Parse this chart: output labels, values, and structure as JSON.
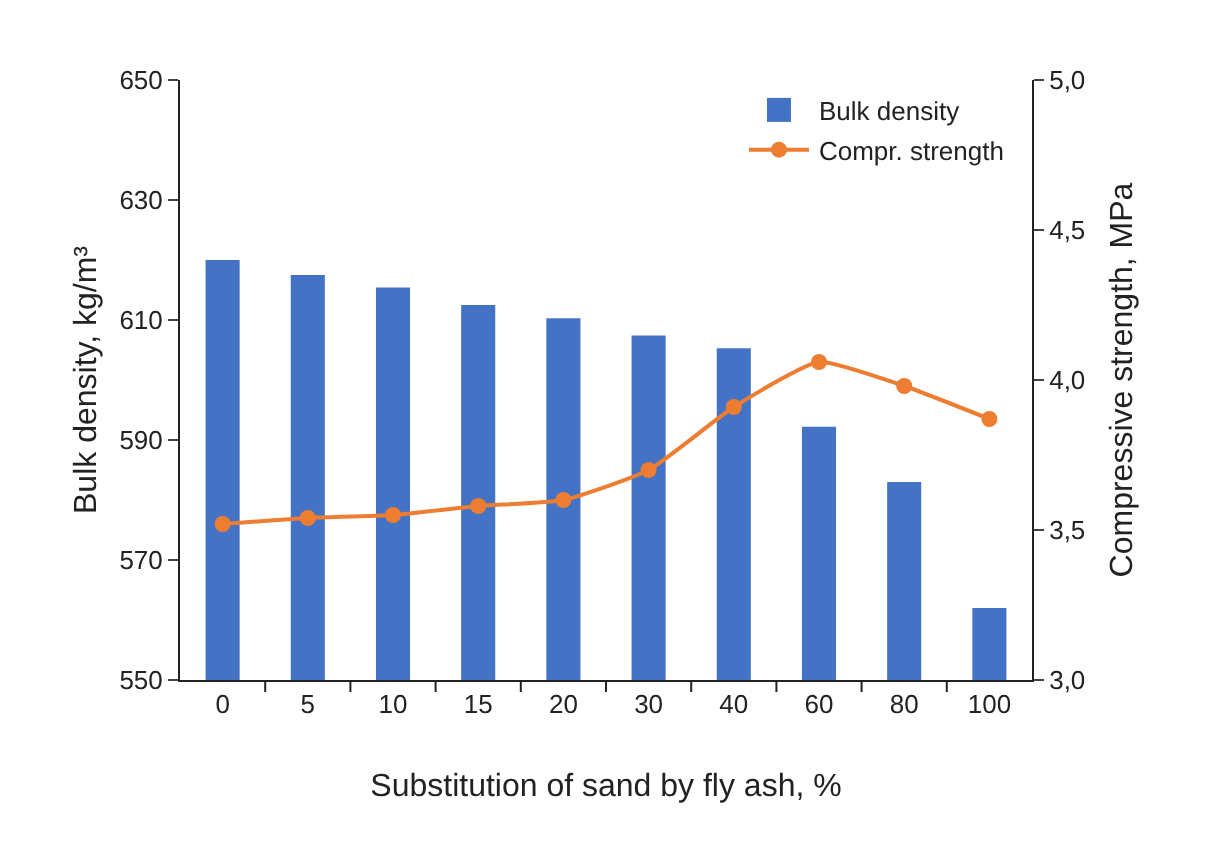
{
  "chart_data": {
    "type": "bar",
    "xlabel": "Substitution of sand by fly ash, %",
    "ylabel": "Bulk density, kg/m³",
    "y2label": "Compressive strength, MPa",
    "categories": [
      "0",
      "5",
      "10",
      "15",
      "20",
      "30",
      "40",
      "60",
      "80",
      "100"
    ],
    "series": [
      {
        "name": "Bulk density",
        "color": "#4472c4",
        "values": [
          620,
          617.5,
          615.4,
          612.5,
          610.3,
          607.4,
          605.3,
          592.2,
          583,
          562
        ]
      },
      {
        "name": "Compr. strength",
        "type": "line",
        "axis": "y2",
        "color": "#ed7d31",
        "marker": "circle",
        "values": [
          3.52,
          3.54,
          3.55,
          3.58,
          3.6,
          3.7,
          3.91,
          4.06,
          3.98,
          3.87
        ]
      }
    ],
    "ylim": [
      550,
      650
    ],
    "yticks": [
      550,
      570,
      590,
      610,
      630,
      650
    ],
    "y2lim": [
      3,
      5
    ],
    "y2ticks": [
      {
        "value": 3,
        "label": "3,0"
      },
      {
        "value": 3.5,
        "label": "3,5"
      },
      {
        "value": 4,
        "label": "4,0"
      },
      {
        "value": 4.5,
        "label": "4,5"
      },
      {
        "value": 5,
        "label": "5,0"
      }
    ],
    "grid": false,
    "legend": "top right"
  }
}
